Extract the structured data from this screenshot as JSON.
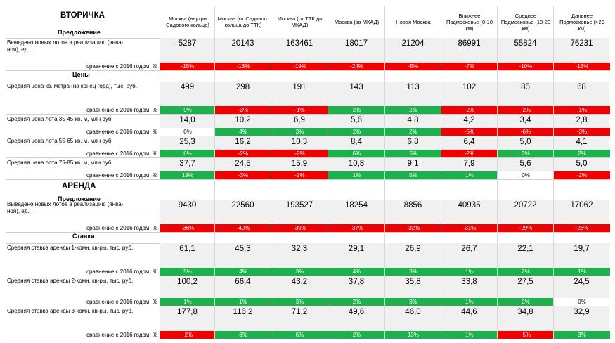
{
  "columns": [
    "Москва (внутри Садового кольца)",
    "Москва (от Садового кольца до ТТК)",
    "Москва (от ТТК до МКАД)",
    "Москва (за МКАД)",
    "Новая Москва",
    "Ближнее Подмосковье (0-10 км)",
    "Среднее Подмосковье (10-20 км)",
    "Дальнее Подмосковье (>20 км)"
  ],
  "secondary": {
    "title": "ВТОРИЧКА",
    "supply_label": "Предложение",
    "prices_label": "Цены"
  },
  "rent": {
    "title": "АРЕНДА",
    "supply_label": "Предложение",
    "rates_label": "Ставки"
  },
  "compare_label": "сравнение с 2016 годом, %",
  "metrics": [
    {
      "label": "Выведено новых лотов в реализацию (январь-ноябрь), ед.",
      "label_display": "Выведено новых лотов в реализацию (янва-\nноя), ед.",
      "values": [
        "5287",
        "20143",
        "163461",
        "18017",
        "21204",
        "86991",
        "55824",
        "76231"
      ],
      "changes": [
        "-15%",
        "-13%",
        "-19%",
        "-24%",
        "-5%",
        "-7%",
        "-10%",
        "-15%"
      ],
      "colors": [
        "red",
        "red",
        "red",
        "red",
        "red",
        "red",
        "red",
        "red"
      ]
    },
    {
      "label": "Средняя цена кв. метра (на конец года), тыс. руб.",
      "values": [
        "499",
        "298",
        "191",
        "143",
        "113",
        "102",
        "85",
        "68"
      ],
      "changes": [
        "9%",
        "-3%",
        "-1%",
        "2%",
        "2%",
        "-2%",
        "-2%",
        "-1%"
      ],
      "colors": [
        "green",
        "red",
        "red",
        "green",
        "green",
        "red",
        "red",
        "red"
      ]
    },
    {
      "label": "Средняя цена лота 35-45 кв. м, млн руб.",
      "values": [
        "14,0",
        "10,2",
        "6,9",
        "5,6",
        "4,8",
        "4,2",
        "3,4",
        "2,8"
      ],
      "changes": [
        "0%",
        "4%",
        "3%",
        "2%",
        "2%",
        "-5%",
        "-6%",
        "-3%"
      ],
      "colors": [
        "white",
        "green",
        "green",
        "green",
        "green",
        "red",
        "red",
        "red"
      ]
    },
    {
      "label": "Средняя цена лота 55-65 кв. м, млн руб.",
      "values": [
        "25,3",
        "16,2",
        "10,3",
        "8,4",
        "6,8",
        "6,4",
        "5,0",
        "4,1"
      ],
      "changes": [
        "6%",
        "-2%",
        "-2%",
        "6%",
        "5%",
        "-2%",
        "3%",
        "2%"
      ],
      "colors": [
        "green",
        "red",
        "red",
        "green",
        "green",
        "red",
        "green",
        "green"
      ]
    },
    {
      "label": "Средняя цена лота 75-85 кв. м, млн руб.",
      "values": [
        "37,7",
        "24,5",
        "15,9",
        "10,8",
        "9,1",
        "7,9",
        "5,6",
        "5,0"
      ],
      "changes": [
        "19%",
        "-3%",
        "-2%",
        "1%",
        "5%",
        "1%",
        "0%",
        "-2%"
      ],
      "colors": [
        "green",
        "red",
        "red",
        "green",
        "green",
        "green",
        "white",
        "red"
      ]
    },
    {
      "label": "Выведено новых лотов в реализацию (январь-ноябрь), ед.",
      "label_display": "Выведено новых лотов в реализацию (янва-\nноя), ед.",
      "values": [
        "9430",
        "22560",
        "193527",
        "18254",
        "8856",
        "40935",
        "20722",
        "17062"
      ],
      "changes": [
        "-36%",
        "-40%",
        "-39%",
        "-37%",
        "-32%",
        "-31%",
        "-29%",
        "-26%"
      ],
      "colors": [
        "red",
        "red",
        "red",
        "red",
        "red",
        "red",
        "red",
        "red"
      ]
    },
    {
      "label": "Средняя ставка аренды 1-комн. кв-ры, тыс. руб.",
      "values": [
        "61,1",
        "45,3",
        "32,3",
        "29,1",
        "26,9",
        "26,7",
        "22,1",
        "19,7"
      ],
      "changes": [
        "5%",
        "4%",
        "3%",
        "4%",
        "3%",
        "1%",
        "2%",
        "1%"
      ],
      "colors": [
        "green",
        "green",
        "green",
        "green",
        "green",
        "green",
        "green",
        "green"
      ]
    },
    {
      "label": "Средняя ставка аренды 2-комн. кв-ры, тыс. руб.",
      "values": [
        "100,2",
        "66,4",
        "43,2",
        "37,8",
        "35,8",
        "33,8",
        "27,5",
        "24,5"
      ],
      "changes": [
        "1%",
        "1%",
        "3%",
        "2%",
        "8%",
        "1%",
        "2%",
        "0%"
      ],
      "colors": [
        "green",
        "green",
        "green",
        "green",
        "green",
        "green",
        "green",
        "white"
      ]
    },
    {
      "label": "Средняя ставка аренды 3-комн. кв-ры, тыс. руб.",
      "values": [
        "177,8",
        "116,2",
        "71,2",
        "49,6",
        "46,0",
        "44,6",
        "34,8",
        "32,9"
      ],
      "changes": [
        "-2%",
        "6%",
        "6%",
        "2%",
        "13%",
        "1%",
        "-5%",
        "3%"
      ],
      "colors": [
        "red",
        "green",
        "green",
        "green",
        "green",
        "green",
        "red",
        "green"
      ]
    }
  ]
}
